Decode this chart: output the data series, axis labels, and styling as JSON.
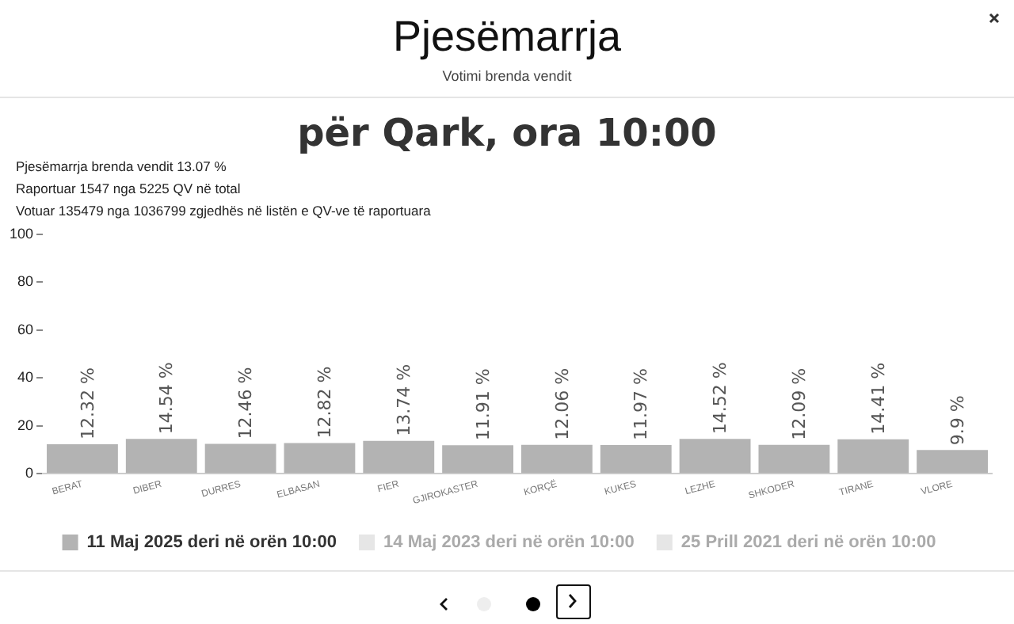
{
  "chart_data": {
    "type": "bar",
    "title": "Pjesëmarrja",
    "subtitle": "Votimi brenda vendit",
    "annotations": [
      "për Qark, ora 10:00",
      "Pjesëmarrja brenda vendit 13.07 %",
      "Raportuar 1547 nga 5225 QV në total",
      "Votuar 135479 nga 1036799 zgjedhës në listën e QV-ve të raportuara"
    ],
    "categories": [
      "BERAT",
      "DIBER",
      "DURRES",
      "ELBASAN",
      "FIER",
      "GJIROKASTER",
      "KORÇË",
      "KUKES",
      "LEZHE",
      "SHKODER",
      "TIRANE",
      "VLORE"
    ],
    "series": [
      {
        "name": "11 Maj 2025 deri në orën 10:00",
        "color": "#b3b3b3",
        "values": [
          12.32,
          14.54,
          12.46,
          12.82,
          13.74,
          11.91,
          12.06,
          11.97,
          14.52,
          12.09,
          14.41,
          9.9
        ],
        "value_labels": [
          "12.32 %",
          "14.54 %",
          "12.46 %",
          "12.82 %",
          "13.74 %",
          "11.91 %",
          "12.06 %",
          "11.97 %",
          "14.52 %",
          "12.09 %",
          "14.41 %",
          "9.9 %"
        ]
      },
      {
        "name": "14 Maj 2023 deri në orën 10:00",
        "color": "#e6e6e6",
        "values": [
          null,
          null,
          null,
          null,
          null,
          null,
          null,
          null,
          null,
          null,
          null,
          null
        ]
      },
      {
        "name": "25 Prill 2021 deri në orën 10:00",
        "color": "#e6e6e6",
        "values": [
          null,
          null,
          null,
          null,
          null,
          null,
          null,
          null,
          null,
          null,
          null,
          null
        ]
      }
    ],
    "ylim": [
      0,
      100
    ],
    "yticks": [
      0,
      20,
      40,
      60,
      80,
      100
    ],
    "grid": false,
    "legend": "bottom"
  }
}
